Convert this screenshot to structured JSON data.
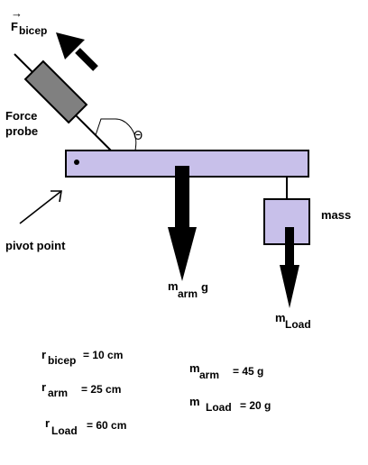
{
  "labels": {
    "f_vector_arrow": "→",
    "f_base": "F",
    "f_sub": "bicep",
    "force_probe_line1": "Force",
    "force_probe_line2": "probe",
    "theta": "Θ",
    "mass": "mass",
    "pivot_point": "pivot point",
    "m_arm_g_base": "m",
    "m_arm_g_sub": "arm",
    "m_arm_g_tail": "g",
    "m_load_base": "m",
    "m_load_sub": "Load"
  },
  "given_values": {
    "r_bicep": {
      "base": "r",
      "sub": "bicep",
      "value": "= 10 cm"
    },
    "r_arm": {
      "base": "r",
      "sub": "arm",
      "value": "= 25 cm"
    },
    "r_load": {
      "base": "r",
      "sub": "Load",
      "value": "= 60 cm"
    },
    "m_arm": {
      "base": "m",
      "sub": "arm",
      "value": "= 45 g"
    },
    "m_load": {
      "base": "m",
      "sub": "Load",
      "value": "= 20 g"
    }
  },
  "colors": {
    "arm_fill": "#c8c0ea",
    "probe_fill": "#808080",
    "outline": "#000000"
  }
}
